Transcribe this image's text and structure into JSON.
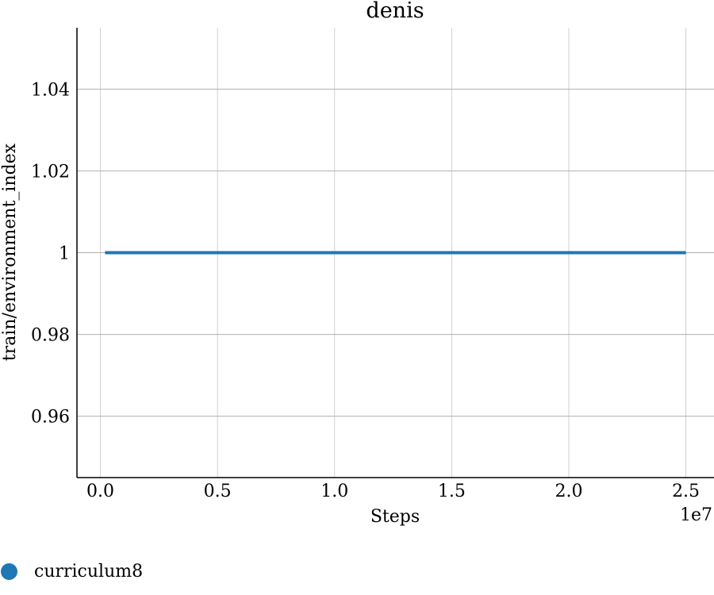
{
  "chart_data": {
    "type": "line",
    "title": "denis",
    "xlabel": "Steps",
    "ylabel": "train/environment_index",
    "x_offset_label": "1e7",
    "xlim": [
      -0.1,
      2.62
    ],
    "ylim": [
      0.945,
      1.055
    ],
    "xticks": [
      0.0,
      0.5,
      1.0,
      1.5,
      2.0,
      2.5
    ],
    "xtick_labels": [
      "0.0",
      "0.5",
      "1.0",
      "1.5",
      "2.0",
      "2.5"
    ],
    "yticks": [
      0.96,
      0.98,
      1.0,
      1.02,
      1.04
    ],
    "ytick_labels": [
      "0.96",
      "0.98",
      "1",
      "1.02",
      "1.04"
    ],
    "grid": true,
    "legend_position": "bottom-left",
    "series": [
      {
        "name": "curriculum8",
        "color": "#1f77b4",
        "x": [
          0.02,
          0.5,
          1.0,
          1.5,
          2.0,
          2.5
        ],
        "y": [
          1,
          1,
          1,
          1,
          1,
          1
        ]
      }
    ]
  }
}
